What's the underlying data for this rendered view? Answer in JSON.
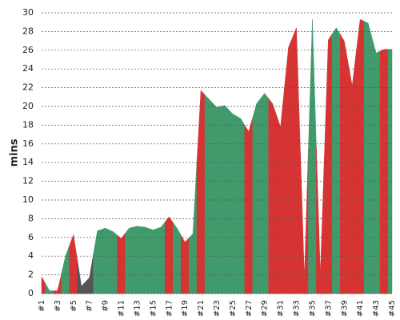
{
  "chart_data": {
    "type": "area",
    "y_label": "mins",
    "categories": [
      "#1",
      null,
      "#3",
      null,
      "#5",
      null,
      "#7",
      null,
      "#9",
      null,
      "#11",
      null,
      "#13",
      null,
      "#15",
      null,
      "#17",
      null,
      "#19",
      null,
      "#21",
      null,
      "#23",
      null,
      "#25",
      null,
      "#27",
      null,
      "#29",
      null,
      "#31",
      null,
      "#33",
      null,
      "#35",
      null,
      "#37",
      null,
      "#39",
      null,
      "#41",
      null,
      "#43",
      null,
      "#45"
    ],
    "values": [
      1.8,
      0.3,
      0.3,
      4,
      6.3,
      0.8,
      1.7,
      6.7,
      7,
      6.6,
      5.9,
      7,
      7.2,
      7.1,
      6.8,
      7.1,
      8.2,
      7,
      5.5,
      6.4,
      21.7,
      20.8,
      19.9,
      20.1,
      19.2,
      18.7,
      17.3,
      20.3,
      21.4,
      20.3,
      17.8,
      26.3,
      28.4,
      1.7,
      29.3,
      2,
      27.1,
      28.4,
      27,
      22.2,
      29.3,
      28.9,
      25.7,
      26.1,
      26.1
    ],
    "colors": [
      "#d63333",
      "#419a6b",
      "#d63333",
      "#419a6b",
      "#d63333",
      "#555555",
      "#555555",
      "#419a6b",
      "#419a6b",
      "#419a6b",
      "#d63333",
      "#419a6b",
      "#419a6b",
      "#419a6b",
      "#419a6b",
      "#419a6b",
      "#d63333",
      "#419a6b",
      "#d63333",
      "#419a6b",
      "#d63333",
      "#419a6b",
      "#419a6b",
      "#419a6b",
      "#419a6b",
      "#419a6b",
      "#d63333",
      "#419a6b",
      "#419a6b",
      "#d63333",
      "#d63333",
      "#d63333",
      "#d63333",
      "#d63333",
      "#419a6b",
      "#d63333",
      "#d63333",
      "#419a6b",
      "#d63333",
      "#d63333",
      "#d63333",
      "#419a6b",
      "#419a6b",
      "#d63333",
      "#419a6b"
    ],
    "ylim": [
      0,
      30
    ],
    "yticks": [
      0,
      2,
      4,
      6,
      8,
      10,
      12,
      14,
      16,
      18,
      20,
      22,
      24,
      26,
      28,
      30
    ],
    "grid": true
  }
}
